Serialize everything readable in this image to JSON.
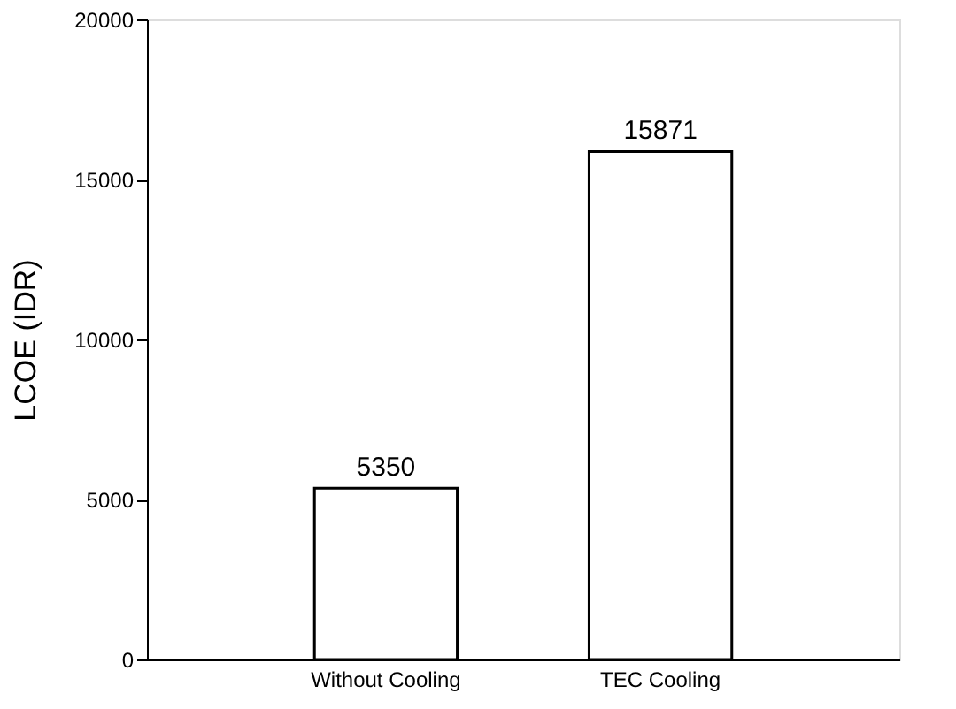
{
  "chart_data": {
    "type": "bar",
    "ylabel": "LCOE (IDR)",
    "categories": [
      "Without Cooling",
      "TEC Cooling"
    ],
    "values": [
      5350,
      15871
    ],
    "color": "#ffffff",
    "ylim": [
      0,
      20000
    ],
    "yticks": [
      0,
      5000,
      10000,
      15000,
      20000
    ],
    "data_labels": true,
    "grid": false
  }
}
